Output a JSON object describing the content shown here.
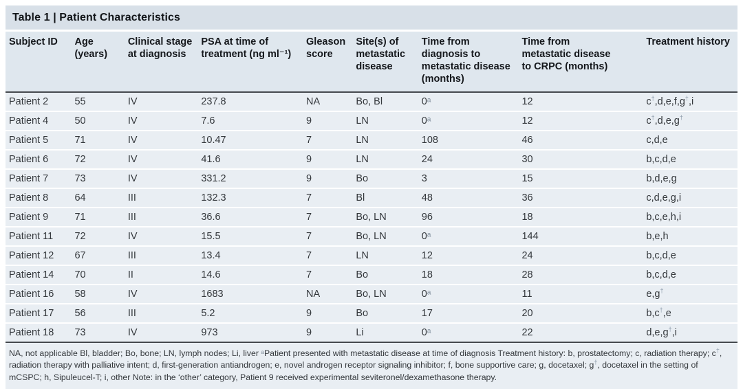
{
  "title": "Table 1 | Patient Characteristics",
  "table": {
    "headers": [
      "Subject ID",
      "Age (years)",
      "Clinical stage at diagnosis",
      "PSA at time of treatment (ng ml⁻¹)",
      "Gleason score",
      "Site(s) of metastatic disease",
      "Time from diagnosis to metastatic disease (months)",
      "Time from metastatic disease to CRPC (months)",
      "Treatment history"
    ],
    "rows": [
      [
        "Patient 2",
        "55",
        "IV",
        "237.8",
        "NA",
        "Bo, Bl",
        "0ᵃ",
        "12",
        "c†,d,e,f,g†,i"
      ],
      [
        "Patient 4",
        "50",
        "IV",
        "7.6",
        "9",
        "LN",
        "0ᵃ",
        "12",
        "c†,d,e,g†"
      ],
      [
        "Patient 5",
        "71",
        "IV",
        "10.47",
        "7",
        "LN",
        "108",
        "46",
        "c,d,e"
      ],
      [
        "Patient 6",
        "72",
        "IV",
        "41.6",
        "9",
        "LN",
        "24",
        "30",
        "b,c,d,e"
      ],
      [
        "Patient 7",
        "73",
        "IV",
        "331.2",
        "9",
        "Bo",
        "3",
        "15",
        "b,d,e,g"
      ],
      [
        "Patient 8",
        "64",
        "III",
        "132.3",
        "7",
        "Bl",
        "48",
        "36",
        "c,d,e,g,i"
      ],
      [
        "Patient 9",
        "71",
        "III",
        "36.6",
        "7",
        "Bo, LN",
        "96",
        "18",
        "b,c,e,h,i"
      ],
      [
        "Patient 11",
        "72",
        "IV",
        "15.5",
        "7",
        "Bo, LN",
        "0ᵃ",
        "144",
        "b,e,h"
      ],
      [
        "Patient 12",
        "67",
        "III",
        "13.4",
        "7",
        "LN",
        "12",
        "24",
        "b,c,d,e"
      ],
      [
        "Patient 14",
        "70",
        "II",
        "14.6",
        "7",
        "Bo",
        "18",
        "28",
        "b,c,d,e"
      ],
      [
        "Patient 16",
        "58",
        "IV",
        "1683",
        "NA",
        "Bo, LN",
        "0ᵃ",
        "11",
        "e,g†"
      ],
      [
        "Patient 17",
        "56",
        "III",
        "5.2",
        "9",
        "Bo",
        "17",
        "20",
        "b,c†,e"
      ],
      [
        "Patient 18",
        "73",
        "IV",
        "973",
        "9",
        "Li",
        "0ᵃ",
        "22",
        "d,e,g†,i"
      ]
    ]
  },
  "footnote": "NA, not applicable Bl, bladder; Bo, bone; LN, lymph nodes; Li, liver ᵃPatient presented with metastatic disease at time of diagnosis Treatment history: b, prostatectomy; c, radiation therapy; c†, radiation therapy with palliative intent; d, first-generation antiandrogen; e, novel androgen receptor signaling inhibitor; f, bone supportive care; g, docetaxel; g†, docetaxel in the setting of mCSPC; h, Sipuleucel-T; i, other Note: in the ‘other’ category, Patient 9 received experimental seviteronel/dexamethasone therapy."
}
